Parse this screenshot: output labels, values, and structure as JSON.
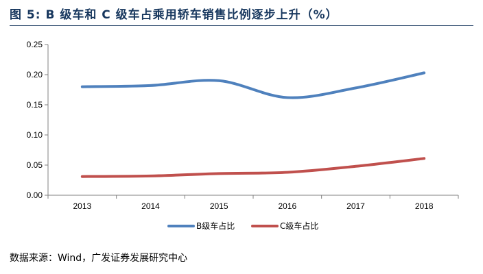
{
  "figure": {
    "title": "图 5:  B 级车和 C 级车占乘用轿车销售比例逐步上升（%）",
    "source": "数据来源：Wind，广发证券发展研究中心"
  },
  "chart_data": {
    "type": "line",
    "categories": [
      "2013",
      "2014",
      "2015",
      "2016",
      "2017",
      "2018"
    ],
    "series": [
      {
        "name": "B级车占比",
        "values": [
          0.18,
          0.182,
          0.19,
          0.162,
          0.178,
          0.203
        ],
        "color": "#4f81bd"
      },
      {
        "name": "C级车占比",
        "values": [
          0.031,
          0.032,
          0.036,
          0.038,
          0.048,
          0.061
        ],
        "color": "#c0504d"
      }
    ],
    "yticks": [
      "0.00",
      "0.05",
      "0.10",
      "0.15",
      "0.20",
      "0.25"
    ],
    "ylim": [
      0,
      0.25
    ],
    "grid": false,
    "legend": "bottom"
  }
}
